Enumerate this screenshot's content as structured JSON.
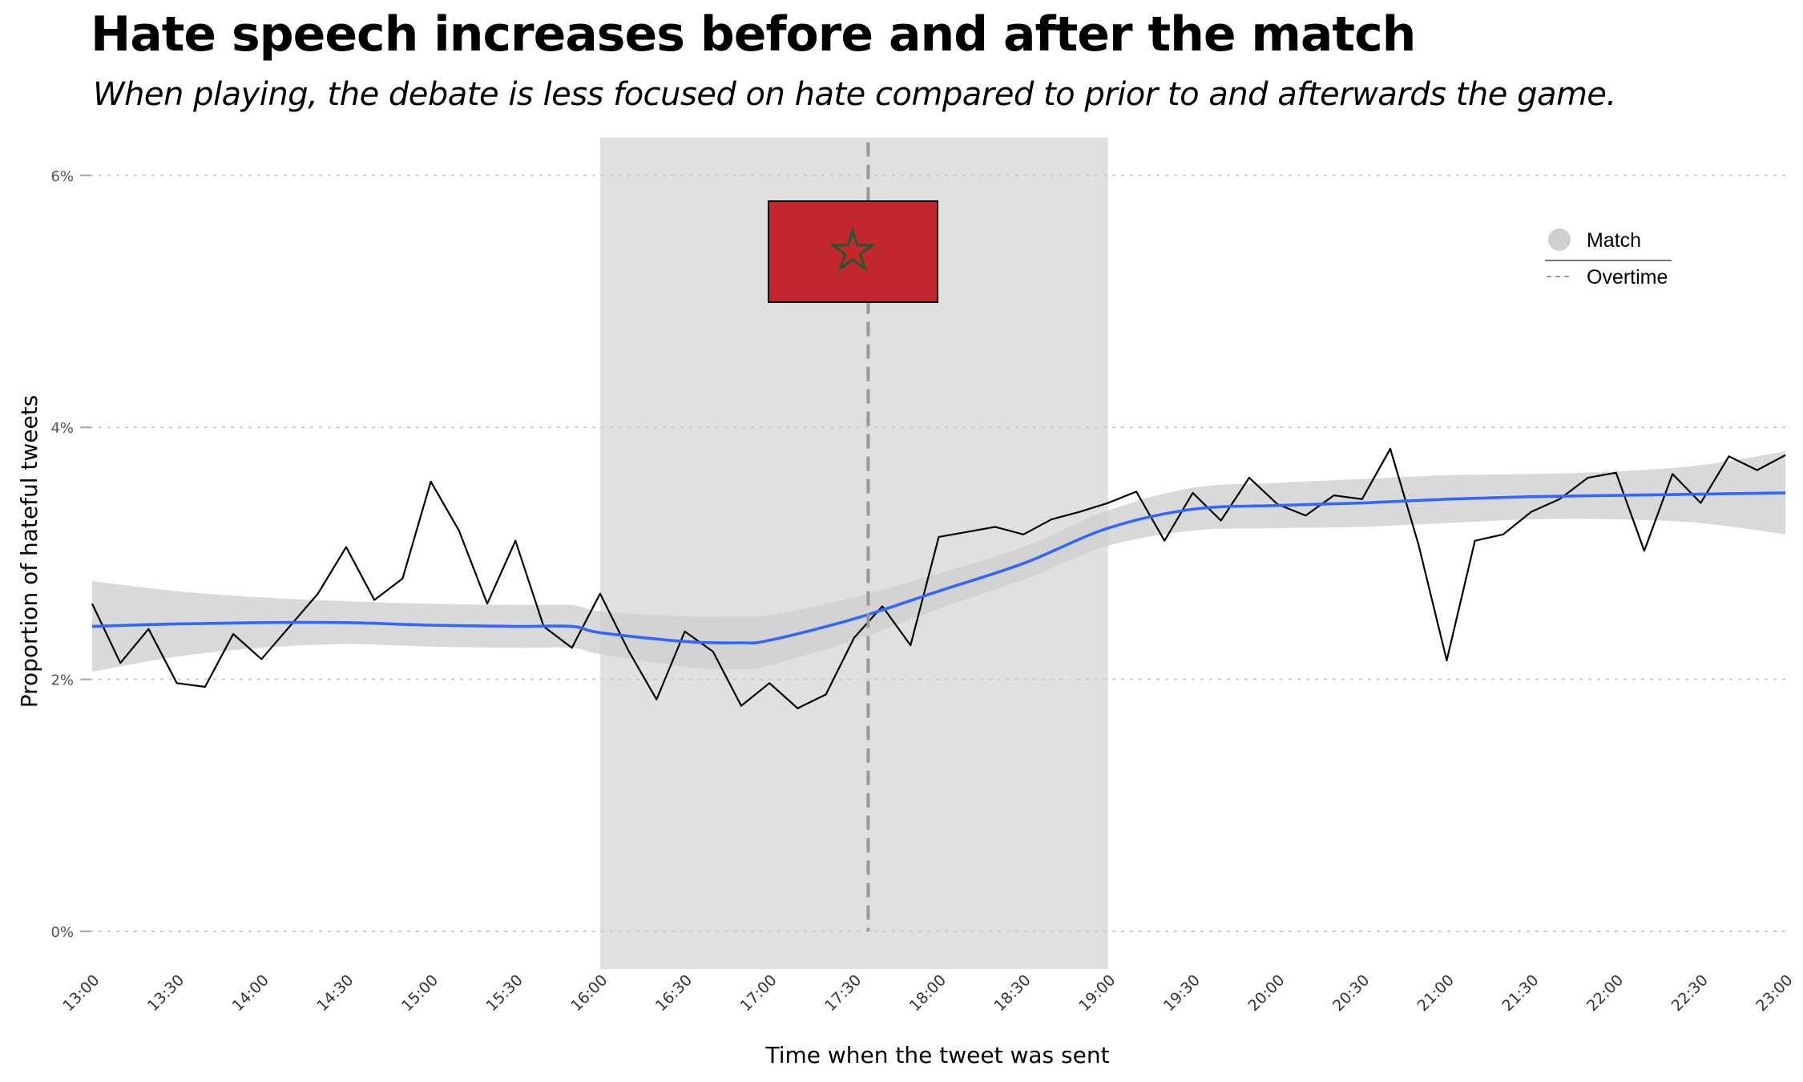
{
  "title": "Hate speech increases before and after the match",
  "subtitle": "When playing, the debate is less focused on hate compared to prior to and afterwards the game.",
  "chart_data": {
    "type": "line",
    "xlabel": "Time when the tweet was sent",
    "ylabel": "Proportion of hateful tweets",
    "x_ticks": [
      "13:00",
      "13:30",
      "14:00",
      "14:30",
      "15:00",
      "15:30",
      "16:00",
      "16:30",
      "17:00",
      "17:30",
      "18:00",
      "18:30",
      "19:00",
      "19:30",
      "20:00",
      "20:30",
      "21:00",
      "21:30",
      "22:00",
      "22:30",
      "23:00"
    ],
    "y_ticks": [
      "0%",
      "2%",
      "4%",
      "6%"
    ],
    "y_tick_values": [
      0,
      2,
      4,
      6
    ],
    "xlim": [
      "13:00",
      "23:00"
    ],
    "ylim": [
      -0.3,
      6.3
    ],
    "grid": "horizontal dotted",
    "legend": {
      "placement": "top-right",
      "entries": [
        {
          "label": "Match",
          "symbol": "grey-circle"
        },
        {
          "label": "Overtime",
          "symbol": "dashed-line"
        }
      ]
    },
    "match_period": [
      "16:00",
      "19:00"
    ],
    "overtime_marker": "17:35",
    "flag": "morocco-flag",
    "colors": {
      "raw_line": "#000000",
      "smooth_line": "#3366ff",
      "confidence_band": "#cfcfcf",
      "match_band": "#e0e0e0",
      "overtime_line": "#999999",
      "flag_red": "#c1272d",
      "flag_star": "#006233"
    },
    "series": [
      {
        "kind": "observed",
        "x": [
          "13:00",
          "13:10",
          "13:20",
          "13:30",
          "13:40",
          "13:50",
          "14:00",
          "14:10",
          "14:20",
          "14:30",
          "14:40",
          "14:50",
          "15:00",
          "15:10",
          "15:20",
          "15:30",
          "15:40",
          "15:50",
          "16:00",
          "16:10",
          "16:20",
          "16:30",
          "16:40",
          "16:50",
          "17:00",
          "17:10",
          "17:20",
          "17:30",
          "17:40",
          "17:50",
          "18:00",
          "18:10",
          "18:20",
          "18:30",
          "18:40",
          "18:50",
          "19:00",
          "19:10",
          "19:20",
          "19:30",
          "19:40",
          "19:50",
          "20:00",
          "20:10",
          "20:20",
          "20:30",
          "20:40",
          "20:50",
          "21:00",
          "21:10",
          "21:20",
          "21:30",
          "21:40",
          "21:50",
          "22:00",
          "22:10",
          "22:20",
          "22:30",
          "22:40",
          "22:50",
          "23:00"
        ],
        "y": [
          2.6,
          2.13,
          2.4,
          1.97,
          1.94,
          2.36,
          2.16,
          2.42,
          2.68,
          3.05,
          2.63,
          2.8,
          3.57,
          3.18,
          2.6,
          3.1,
          2.42,
          2.25,
          2.68,
          2.23,
          1.84,
          2.38,
          2.22,
          1.79,
          1.97,
          1.77,
          1.88,
          2.33,
          2.58,
          2.27,
          3.13,
          3.17,
          3.21,
          3.15,
          3.27,
          3.33,
          3.4,
          3.49,
          3.1,
          3.48,
          3.26,
          3.6,
          3.39,
          3.3,
          3.46,
          3.43,
          3.83,
          3.07,
          2.15,
          3.1,
          3.15,
          3.33,
          3.43,
          3.6,
          3.64,
          3.02,
          3.63,
          3.4,
          3.77,
          3.66,
          3.78
        ]
      },
      {
        "kind": "smoothed",
        "x": [
          "13:00",
          "13:30",
          "14:00",
          "14:30",
          "15:00",
          "15:30",
          "15:50",
          "16:00",
          "16:30",
          "16:50",
          "17:00",
          "17:30",
          "18:00",
          "18:30",
          "19:00",
          "19:30",
          "20:00",
          "20:30",
          "21:00",
          "21:30",
          "22:00",
          "22:30",
          "23:00"
        ],
        "y": [
          2.42,
          2.44,
          2.45,
          2.45,
          2.43,
          2.42,
          2.42,
          2.37,
          2.3,
          2.29,
          2.31,
          2.48,
          2.7,
          2.92,
          3.2,
          3.35,
          3.38,
          3.4,
          3.43,
          3.45,
          3.46,
          3.47,
          3.48
        ],
        "ci_half_width": [
          0.36,
          0.26,
          0.2,
          0.17,
          0.17,
          0.17,
          0.17,
          0.17,
          0.2,
          0.21,
          0.2,
          0.17,
          0.14,
          0.13,
          0.14,
          0.17,
          0.18,
          0.19,
          0.19,
          0.18,
          0.19,
          0.23,
          0.33
        ]
      }
    ]
  }
}
